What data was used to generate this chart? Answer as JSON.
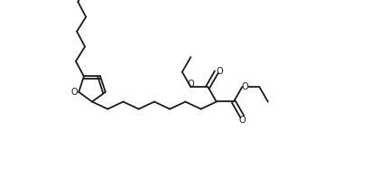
{
  "bg_color": "#ffffff",
  "line_color": "#1a1a1a",
  "line_width": 1.3,
  "figsize": [
    4.12,
    2.09
  ],
  "dpi": 100,
  "xlim": [
    0,
    4.12
  ],
  "ylim": [
    0,
    2.09
  ]
}
